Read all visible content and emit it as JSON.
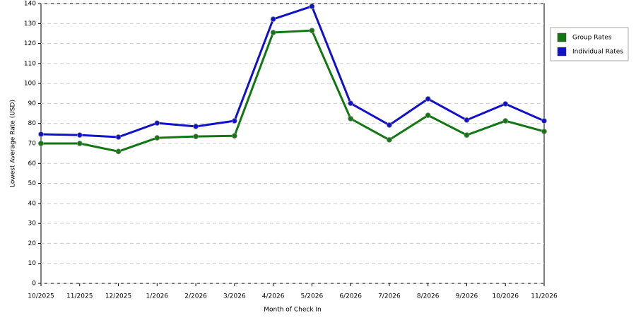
{
  "chart_data": {
    "type": "line",
    "x_label": "Month of Check In",
    "y_label": "Lowest Average Rate (USD)",
    "categories": [
      "10/2025",
      "11/2025",
      "12/2025",
      "1/2026",
      "2/2026",
      "3/2026",
      "4/2026",
      "5/2026",
      "6/2026",
      "7/2026",
      "8/2026",
      "9/2026",
      "10/2026",
      "11/2026"
    ],
    "series": [
      {
        "name": "Group Rates",
        "color": "#117711",
        "values": [
          70,
          70,
          66,
          72.8,
          73.5,
          73.8,
          125.5,
          126.5,
          82.4,
          71.8,
          84.1,
          74.2,
          81.3,
          76
        ]
      },
      {
        "name": "Individual Rates",
        "color": "#1111cc",
        "values": [
          74.6,
          74.2,
          73.2,
          80.2,
          78.5,
          81.3,
          132.2,
          138.6,
          90.1,
          79.2,
          92.3,
          81.7,
          89.8,
          81.3
        ]
      }
    ],
    "ylim": [
      0,
      140
    ],
    "yticks": [
      0,
      10,
      20,
      30,
      40,
      50,
      60,
      70,
      80,
      90,
      100,
      110,
      120,
      130,
      140
    ],
    "grid": true,
    "legend": "right"
  }
}
